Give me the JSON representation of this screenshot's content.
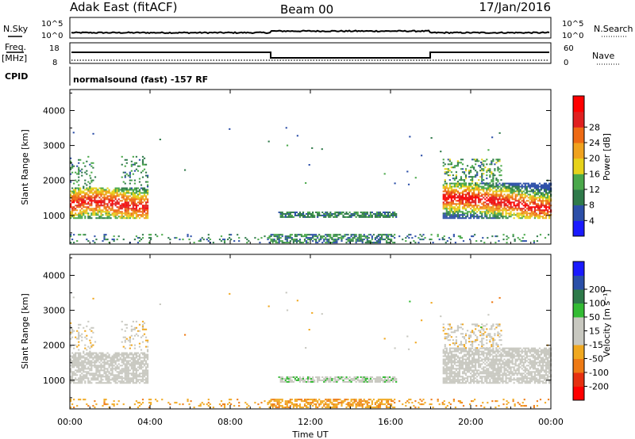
{
  "header": {
    "station": "Adak East (fitACF)",
    "beam": "Beam 00",
    "date": "17/Jan/2016"
  },
  "strip1": {
    "left_label": "N.Sky",
    "right_label": "N.Search",
    "left_ticks": [
      "10^5",
      "10^0"
    ],
    "right_ticks": [
      "10^5",
      "10^0"
    ]
  },
  "strip2": {
    "left_label_1": "Freq.",
    "left_label_2": "[MHz]",
    "right_label": "Nave",
    "left_ticks": [
      "18",
      "8"
    ],
    "right_ticks": [
      "60",
      "0"
    ]
  },
  "strip3": {
    "left_label": "CPID",
    "text": "normalsound (fast) -157 RF"
  },
  "colors": {
    "power_scale": [
      "#1a1aff",
      "#2c4fa8",
      "#2f7a4a",
      "#4aa84a",
      "#e6d21a",
      "#f0a21e",
      "#ee6a14",
      "#e02020",
      "#ff0000"
    ],
    "velocity_scale": [
      "#ff0000",
      "#e63010",
      "#ee7a14",
      "#f0a820",
      "#c8c8c0",
      "#c8c8c0",
      "#33bb33",
      "#2e7a4a",
      "#2a4fa8",
      "#1a1aff"
    ]
  },
  "chart_data": [
    {
      "type": "heatmap",
      "name_hint": "power",
      "ylabel": "Slant Range [km]",
      "xlabel": "",
      "xlim_hours": [
        0,
        24
      ],
      "ylim": [
        180,
        4600
      ],
      "y_ticks": [
        1000,
        2000,
        3000,
        4000
      ],
      "colorbar_label": "Power [dB]",
      "colorbar_ticks": [
        4,
        8,
        12,
        16,
        20,
        24,
        28
      ],
      "clim": [
        0,
        32
      ]
    },
    {
      "type": "heatmap",
      "name_hint": "velocity",
      "ylabel": "Slant Range [km]",
      "xlabel": "Time UT",
      "xlim_hours": [
        0,
        24
      ],
      "ylim": [
        180,
        4600
      ],
      "y_ticks": [
        1000,
        2000,
        3000,
        4000
      ],
      "colorbar_label": "Velocity [m s⁻¹]",
      "colorbar_ticks": [
        -200,
        -100,
        -50,
        -15,
        15,
        50,
        100,
        200
      ]
    }
  ],
  "x_tick_labels": [
    "00:00",
    "04:00",
    "08:00",
    "12:00",
    "16:00",
    "20:00",
    "00:00"
  ],
  "x_axis_title": "Time UT"
}
